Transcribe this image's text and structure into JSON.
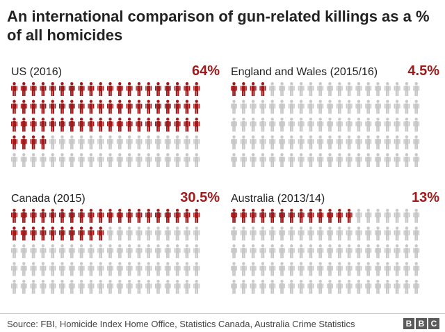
{
  "title": "An international comparison of gun-related killings as a % of all homicides",
  "source": "Source: FBI, Homicide Index Home Office, Statistics Canada, Australia Crime Statistics",
  "logo": [
    "B",
    "B",
    "C"
  ],
  "colors": {
    "highlight": "#a0191b",
    "grey": "#c8c8c8"
  },
  "chart_data": {
    "type": "pictogram",
    "icons_per_panel": 100,
    "icons_per_row": 20,
    "panels": [
      {
        "label": "US (2016)",
        "value_label": "64%",
        "value": 64
      },
      {
        "label": "England and Wales (2015/16)",
        "value_label": "4.5%",
        "value": 4.5
      },
      {
        "label": "Canada (2015)",
        "value_label": "30.5%",
        "value": 30.5
      },
      {
        "label": "Australia (2013/14)",
        "value_label": "13%",
        "value": 13
      }
    ]
  }
}
